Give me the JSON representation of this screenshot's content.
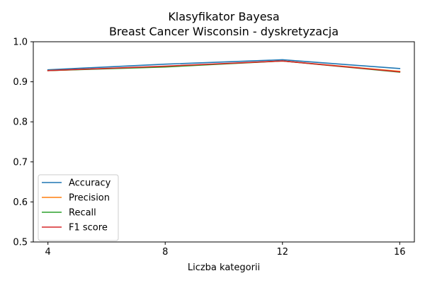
{
  "chart_data": {
    "type": "line",
    "title": "Klasyfikator Bayesa",
    "subtitle": "Breast Cancer Wisconsin - dyskretyzacja",
    "xlabel": "Liczba kategorii",
    "ylabel": "",
    "x": [
      4,
      8,
      12,
      16
    ],
    "x_ticks": [
      "4",
      "8",
      "12",
      "16"
    ],
    "y_ticks": [
      "0.5",
      "0.6",
      "0.7",
      "0.8",
      "0.9",
      "1.0"
    ],
    "xlim": [
      3.5,
      16.5
    ],
    "ylim": [
      0.5,
      1.0
    ],
    "grid": false,
    "legend_position": "lower-left",
    "series": [
      {
        "name": "Accuracy",
        "color": "#1f77b4",
        "values": [
          0.93,
          0.944,
          0.955,
          0.933
        ]
      },
      {
        "name": "Precision",
        "color": "#ff7f0e",
        "values": [
          0.928,
          0.938,
          0.952,
          0.926
        ]
      },
      {
        "name": "Recall",
        "color": "#2ca02c",
        "values": [
          0.928,
          0.937,
          0.952,
          0.924
        ]
      },
      {
        "name": "F1 score",
        "color": "#d62728",
        "values": [
          0.928,
          0.939,
          0.952,
          0.925
        ]
      }
    ]
  }
}
